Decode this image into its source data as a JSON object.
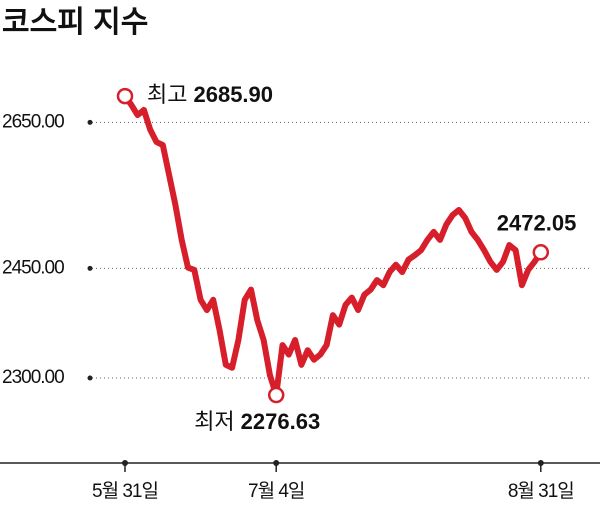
{
  "chart_data": {
    "type": "line",
    "title": "코스피 지수",
    "categories": [
      "5월 31일",
      null,
      null,
      null,
      null,
      null,
      null,
      null,
      null,
      null,
      null,
      null,
      null,
      null,
      null,
      null,
      null,
      null,
      null,
      null,
      null,
      null,
      null,
      null,
      "7월 4일",
      null,
      null,
      null,
      null,
      null,
      null,
      null,
      null,
      null,
      null,
      null,
      null,
      null,
      null,
      null,
      null,
      null,
      null,
      null,
      null,
      null,
      null,
      null,
      null,
      null,
      null,
      null,
      null,
      null,
      null,
      null,
      null,
      null,
      null,
      null,
      null,
      null,
      null,
      null,
      null,
      null,
      "8월 31일"
    ],
    "series": [
      {
        "color": "#d71f2b",
        "values": [
          2685.9,
          2674,
          2660,
          2667,
          2640,
          2623,
          2619,
          2578,
          2537,
          2489,
          2451,
          2448,
          2407,
          2393,
          2407,
          2366,
          2318,
          2314,
          2352,
          2407,
          2421,
          2379,
          2352,
          2304,
          2276.63,
          2345,
          2332,
          2352,
          2318,
          2338,
          2325,
          2332,
          2345,
          2386,
          2373,
          2400,
          2410,
          2393,
          2414,
          2421,
          2434,
          2427,
          2445,
          2455,
          2445,
          2462,
          2468,
          2475,
          2489,
          2500,
          2489,
          2510,
          2523,
          2530,
          2519,
          2500,
          2489,
          2475,
          2459,
          2448,
          2459,
          2482,
          2475,
          2427,
          2448,
          2459,
          2472.05
        ],
        "value_labels": [
          "2685.90",
          null,
          null,
          null,
          null,
          null,
          null,
          null,
          null,
          null,
          null,
          null,
          null,
          null,
          null,
          null,
          null,
          null,
          null,
          null,
          null,
          null,
          null,
          null,
          "2276.63",
          null,
          null,
          null,
          null,
          null,
          null,
          null,
          null,
          null,
          null,
          null,
          null,
          null,
          null,
          null,
          null,
          null,
          null,
          null,
          null,
          null,
          null,
          null,
          null,
          null,
          null,
          null,
          null,
          null,
          null,
          null,
          null,
          null,
          null,
          null,
          null,
          null,
          null,
          null,
          null,
          null,
          "2472.05"
        ]
      }
    ],
    "high_label": "최고",
    "low_label": "최저",
    "ylim": [
      2180,
      2760
    ],
    "yticks": [
      {
        "value": 2300,
        "label": "2300.00"
      },
      {
        "value": 2450,
        "label": "2450.00"
      },
      {
        "value": 2650,
        "label": "2650.00"
      }
    ],
    "grid": true
  }
}
